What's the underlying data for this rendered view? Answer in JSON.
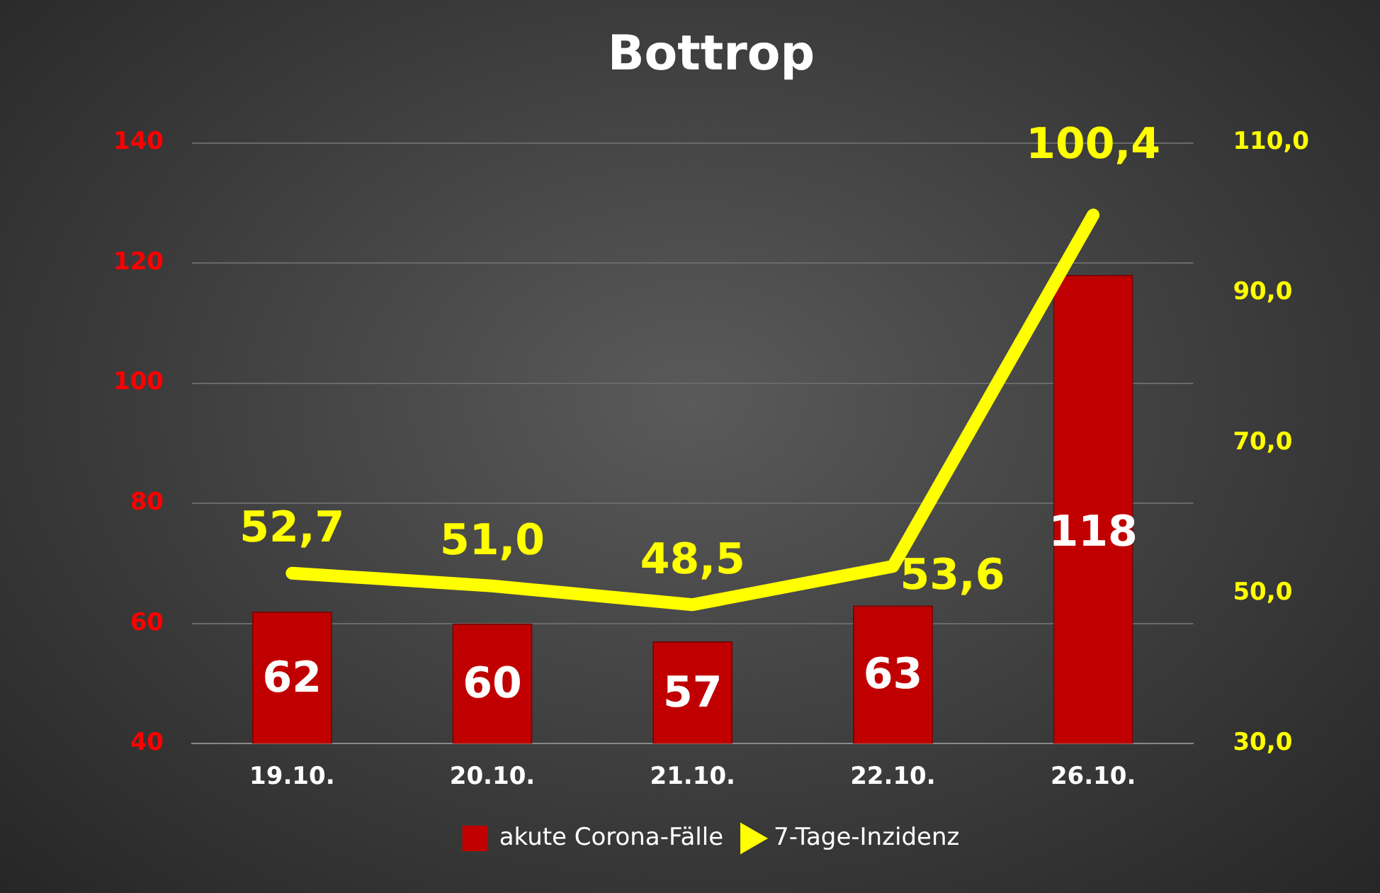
{
  "chart_data": {
    "type": "bar",
    "title": "Bottrop",
    "categories": [
      "19.10.",
      "20.10.",
      "21.10.",
      "22.10.",
      "26.10."
    ],
    "series": [
      {
        "name": "akute Corona-Fälle",
        "color": "#c00000",
        "values": [
          62,
          60,
          57,
          63,
          118
        ],
        "value_labels": [
          "62",
          "60",
          "57",
          "63",
          "118"
        ]
      },
      {
        "name": "7-Tage-Inzidenz",
        "type": "line",
        "axis": "y2",
        "color": "#ffff00",
        "values": [
          52.7,
          51.0,
          48.5,
          53.6,
          100.4
        ],
        "value_labels": [
          "52,7",
          "51,0",
          "48,5",
          "53,6",
          "100,4"
        ]
      }
    ],
    "ylim": [
      40,
      140
    ],
    "yticks": [
      40,
      60,
      80,
      100,
      120,
      140
    ],
    "y2lim": [
      30,
      110
    ],
    "y2ticks": [
      {
        "value": 30,
        "label": "30,0"
      },
      {
        "value": 50,
        "label": "50,0"
      },
      {
        "value": 70,
        "label": "70,0"
      },
      {
        "value": 90,
        "label": "90,0"
      },
      {
        "value": 110,
        "label": "110,0"
      }
    ],
    "grid": "y",
    "legend": "bottom",
    "marker": "none",
    "line_style": "solid"
  }
}
